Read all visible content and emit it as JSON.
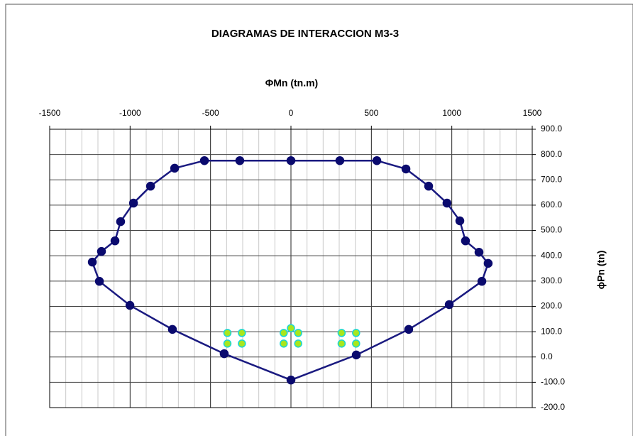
{
  "chart_data": {
    "type": "scatter",
    "title": "DIAGRAMAS  DE INTERACCION  M3-3",
    "x_label": "ΦMn (tn.m)",
    "y_label": "ϕPn (tn)",
    "xlim": [
      -1500,
      1500
    ],
    "ylim": [
      -200,
      900
    ],
    "xticks": [
      -1500,
      -1000,
      -500,
      0,
      500,
      1000,
      1500
    ],
    "yticks": [
      {
        "value": 900,
        "label": "900.0"
      },
      {
        "value": 800,
        "label": "800.0"
      },
      {
        "value": 700,
        "label": "700.0"
      },
      {
        "value": 600,
        "label": "600.0"
      },
      {
        "value": 500,
        "label": "500.0"
      },
      {
        "value": 400,
        "label": "400.0"
      },
      {
        "value": 300,
        "label": "300.0"
      },
      {
        "value": 200,
        "label": "200.0"
      },
      {
        "value": 100,
        "label": "100.0"
      },
      {
        "value": 0,
        "label": "0.0"
      },
      {
        "value": -100,
        "label": "-100.0"
      },
      {
        "value": -200,
        "label": "-200.0"
      }
    ],
    "grid": true,
    "series": [
      {
        "color": "#1a1a80",
        "line": true,
        "closed": true,
        "x": [
          -538,
          -318,
          0,
          304,
          534,
          715,
          856,
          970,
          1050,
          1085,
          1169,
          1226,
          1187,
          984,
          732,
          406,
          0,
          -415,
          -737,
          -1001,
          -1191,
          -1235,
          -1178,
          -1094,
          -1059,
          -979,
          -873,
          -723
        ],
        "values": [
          776,
          776,
          776,
          776,
          776,
          743,
          675,
          608,
          538,
          459,
          414,
          370,
          299,
          207,
          109,
          8,
          -91,
          13,
          109,
          204,
          299,
          375,
          417,
          459,
          535,
          608,
          675,
          746
        ]
      },
      {
        "color": "#a8e61d",
        "line": false,
        "closed": false,
        "x": [
          -395,
          -305,
          -395,
          -305,
          -45,
          0,
          45,
          -45,
          45,
          315,
          405,
          315,
          405
        ],
        "values": [
          95,
          95,
          53,
          53,
          95,
          114,
          95,
          53,
          53,
          95,
          95,
          53,
          53
        ]
      }
    ]
  }
}
